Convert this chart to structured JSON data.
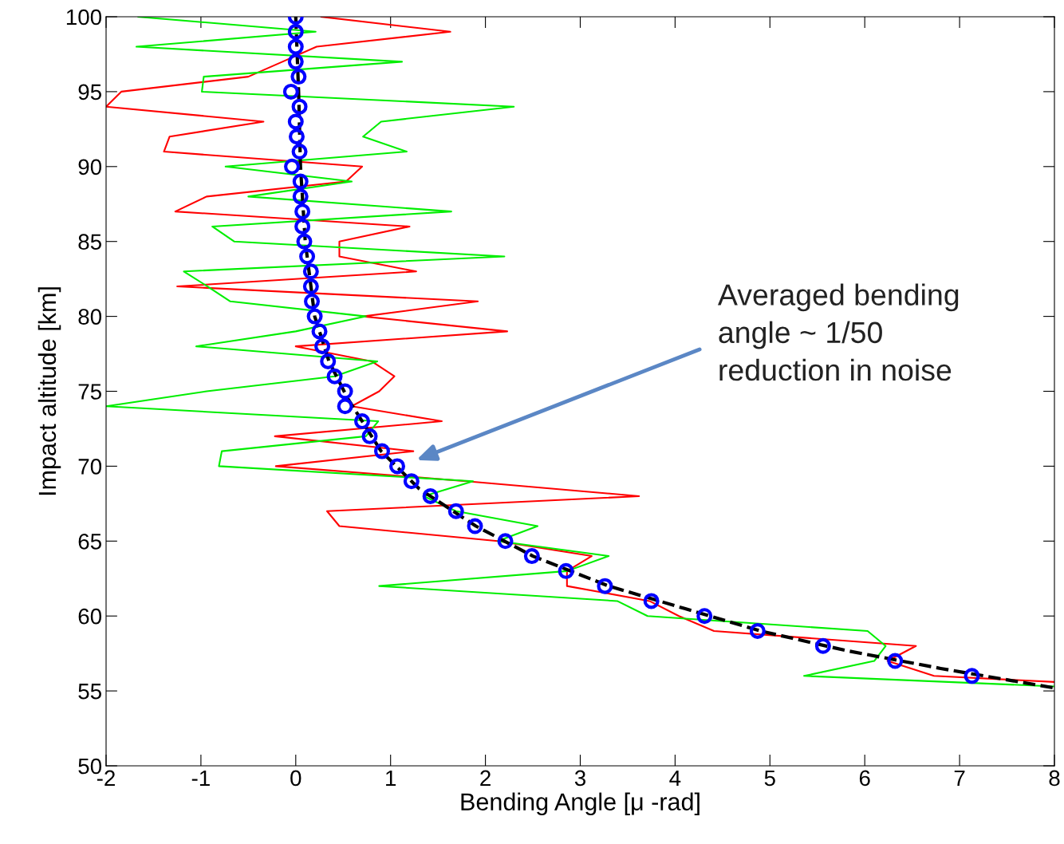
{
  "chart_data": {
    "type": "line",
    "xlabel": "Bending Angle [μ -rad]",
    "ylabel": "Impact altitude [km]",
    "xlim": [
      -2,
      8
    ],
    "xticks": [
      -2,
      -1,
      0,
      1,
      2,
      3,
      4,
      5,
      6,
      7,
      8
    ],
    "ylim": [
      50,
      100
    ],
    "yticks": [
      50,
      55,
      60,
      65,
      70,
      75,
      80,
      85,
      90,
      95,
      100
    ],
    "grid": false,
    "legend": false,
    "annotations": [
      "Averaged bending\nangle ~ 1/50\nreduction in noise"
    ],
    "series": [
      {
        "color": "#ff0000",
        "line_style": "solid",
        "marker": "none",
        "x": [
          0.27,
          1.63,
          0.22,
          -0.14,
          -0.5,
          -1.84,
          -2.0,
          -0.34,
          -1.33,
          -1.39,
          0.7,
          0.53,
          -0.94,
          -1.27,
          1.2,
          0.46,
          0.46,
          1.27,
          -1.25,
          1.92,
          0.71,
          2.23,
          0.0,
          0.8,
          1.04,
          0.88,
          0.59,
          1.54,
          -0.22,
          1.24,
          -0.21,
          1.8,
          3.62,
          0.33,
          0.46,
          2.13,
          3.12,
          2.86,
          2.86,
          3.73,
          4.04,
          4.41,
          6.54,
          6.24,
          6.73,
          8.0
        ],
        "values": [
          100,
          99,
          98,
          97,
          96,
          95,
          94,
          93,
          92,
          91,
          90,
          89,
          88,
          87,
          86,
          85,
          84,
          83,
          82,
          81,
          80,
          79,
          78,
          77,
          76,
          75,
          74,
          73,
          72,
          71,
          70,
          69,
          68,
          67,
          66,
          65,
          64,
          63,
          62,
          61,
          60,
          59,
          58,
          57,
          56,
          55.6
        ]
      },
      {
        "color": "#00ee00",
        "line_style": "solid",
        "marker": "none",
        "x": [
          -1.66,
          0.21,
          -1.68,
          1.12,
          -0.97,
          -0.99,
          2.3,
          0.9,
          0.71,
          1.17,
          -0.74,
          0.59,
          -0.5,
          1.64,
          -0.88,
          -0.65,
          2.2,
          -1.18,
          -0.93,
          -0.69,
          0.74,
          0.0,
          -1.05,
          0.86,
          0.41,
          -0.94,
          -2.0,
          0.87,
          0.74,
          -0.78,
          -0.81,
          1.87,
          1.35,
          1.69,
          2.55,
          2.13,
          3.3,
          2.86,
          0.88,
          3.39,
          3.71,
          6.03,
          6.22,
          6.1,
          5.36,
          8.0
        ],
        "values": [
          100,
          99,
          98,
          97,
          96,
          95,
          94,
          93,
          92,
          91,
          90,
          89,
          88,
          87,
          86,
          85,
          84,
          83,
          82,
          81,
          80,
          79,
          78,
          77,
          76,
          75,
          74,
          73,
          72,
          71,
          70,
          69,
          68,
          67,
          66,
          65,
          64,
          63,
          62,
          61,
          60,
          59,
          58,
          57,
          56,
          55.3
        ]
      },
      {
        "color": "#000000",
        "line_style": "dashed",
        "marker": "none",
        "x": [
          0.0,
          0.03,
          0.05,
          0.1,
          0.2,
          0.35,
          0.55,
          0.9,
          1.3,
          1.9,
          2.5,
          3.3,
          4.1,
          4.9,
          5.8,
          6.8,
          8.0
        ],
        "values": [
          100,
          95,
          90,
          85,
          80,
          77,
          74.5,
          71,
          68.5,
          66,
          64,
          62,
          60.5,
          59,
          57.7,
          56.5,
          55.2
        ]
      },
      {
        "type": "scatter",
        "color": "#0000ff",
        "marker": "circle",
        "x": [
          0.0,
          0.0,
          0.0,
          0.0,
          0.03,
          -0.05,
          0.04,
          0.0,
          0.01,
          0.04,
          -0.04,
          0.05,
          0.05,
          0.07,
          0.07,
          0.09,
          0.12,
          0.16,
          0.16,
          0.17,
          0.2,
          0.25,
          0.28,
          0.34,
          0.41,
          0.52,
          0.52,
          0.7,
          0.78,
          0.91,
          1.07,
          1.22,
          1.42,
          1.69,
          1.89,
          2.21,
          2.49,
          2.85,
          3.26,
          3.75,
          4.31,
          4.87,
          5.56,
          6.32,
          7.13
        ],
        "values": [
          100,
          99,
          98,
          97,
          96,
          95,
          94,
          93,
          92,
          91,
          90,
          89,
          88,
          87,
          86,
          85,
          84,
          83,
          82,
          81,
          80,
          79,
          78,
          77,
          76,
          75,
          74,
          73,
          72,
          71,
          70,
          69,
          68,
          67,
          66,
          65,
          64,
          63,
          62,
          61,
          60,
          59,
          58,
          57,
          56
        ]
      }
    ]
  }
}
